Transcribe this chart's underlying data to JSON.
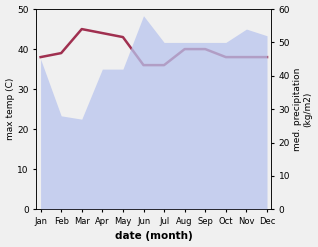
{
  "months": [
    "Jan",
    "Feb",
    "Mar",
    "Apr",
    "May",
    "Jun",
    "Jul",
    "Aug",
    "Sep",
    "Oct",
    "Nov",
    "Dec"
  ],
  "month_x": [
    0,
    1,
    2,
    3,
    4,
    5,
    6,
    7,
    8,
    9,
    10,
    11
  ],
  "temperature": [
    38,
    39,
    45,
    44,
    43,
    36,
    36,
    40,
    40,
    38,
    38,
    38
  ],
  "precipitation": [
    45,
    28,
    27,
    42,
    42,
    58,
    50,
    50,
    50,
    50,
    54,
    52
  ],
  "temp_color": "#a03050",
  "precip_color": "#b8c4ee",
  "precip_alpha": 0.75,
  "ylabel_left": "max temp (C)",
  "ylabel_right": "med. precipitation\n(kg/m2)",
  "xlabel": "date (month)",
  "ylim_left": [
    0,
    50
  ],
  "ylim_right": [
    0,
    60
  ],
  "yticks_left": [
    0,
    10,
    20,
    30,
    40,
    50
  ],
  "yticks_right": [
    0,
    10,
    20,
    30,
    40,
    50,
    60
  ],
  "temp_linewidth": 1.8,
  "bg_color": "#f0f0f0"
}
